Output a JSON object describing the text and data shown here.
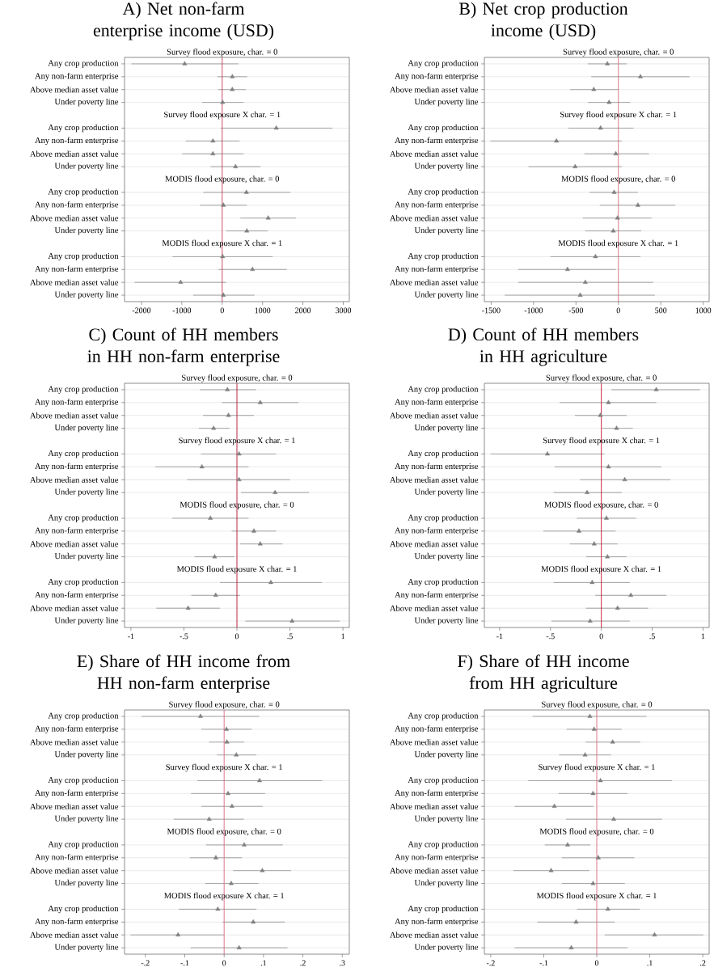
{
  "chart_data": [
    {
      "type": "scatter",
      "orientation": "horizontal",
      "title": "A) Net non-farm enterprise income (USD)",
      "categories": [
        "Any crop production",
        "Any non-farm enterprise",
        "Above median asset value",
        "Under poverty line",
        "Any crop production",
        "Any non-farm enterprise",
        "Above median asset value",
        "Under poverty line",
        "Any crop production",
        "Any non-farm enterprise",
        "Above median asset value",
        "Under poverty line",
        "Any crop production",
        "Any non-farm enterprise",
        "Above median asset value",
        "Under poverty line"
      ],
      "annotations": [
        "Survey flood exposure, char. = 0",
        "Survey flood exposure X char. = 1",
        "MODIS flood exposure, char. = 0",
        "MODIS flood exposure X char. = 1"
      ],
      "color": "#808080",
      "marker": "triangle",
      "grid": "y",
      "values": [
        -930,
        250,
        250,
        10,
        1340,
        -230,
        -230,
        330,
        600,
        30,
        1140,
        610,
        10,
        750,
        -1030,
        30
      ],
      "errors": [
        [
          -2250,
          400
        ],
        [
          -120,
          620
        ],
        [
          -100,
          590
        ],
        [
          -500,
          530
        ],
        [
          -30,
          2730
        ],
        [
          -900,
          430
        ],
        [
          -990,
          530
        ],
        [
          -290,
          950
        ],
        [
          -470,
          1690
        ],
        [
          -550,
          610
        ],
        [
          450,
          1830
        ],
        [
          100,
          1130
        ],
        [
          -1230,
          1250
        ],
        [
          -90,
          1600
        ],
        [
          -2170,
          100
        ],
        [
          -720,
          800
        ]
      ],
      "xlim": [
        -2420,
        3150
      ],
      "xticks": [
        -2000,
        -1000,
        0,
        1000,
        2000,
        3000
      ],
      "ref_lines": [
        {
          "axis": "x",
          "value": 0,
          "color": "#c8385a"
        }
      ]
    },
    {
      "type": "scatter",
      "orientation": "horizontal",
      "title": "B) Net crop production income (USD)",
      "categories": [
        "Any crop production",
        "Any non-farm enterprise",
        "Above median asset value",
        "Under poverty line",
        "Any crop production",
        "Any non-farm enterprise",
        "Above median asset value",
        "Under poverty line",
        "Any crop production",
        "Any non-farm enterprise",
        "Above median asset value",
        "Under poverty line",
        "Any crop production",
        "Any non-farm enterprise",
        "Above median asset value",
        "Under poverty line"
      ],
      "annotations": [
        "Survey flood exposure, char. = 0",
        "Survey flood exposure X char. = 1",
        "MODIS flood exposure, char. = 0",
        "MODIS flood exposure X char. = 1"
      ],
      "color": "#808080",
      "marker": "triangle",
      "grid": "y",
      "values": [
        -130,
        260,
        -290,
        -110,
        -210,
        -730,
        -30,
        -510,
        -50,
        230,
        -10,
        -60,
        -270,
        -600,
        -390,
        -450
      ],
      "errors": [
        [
          -360,
          100
        ],
        [
          -320,
          840
        ],
        [
          -570,
          0
        ],
        [
          -360,
          140
        ],
        [
          -590,
          180
        ],
        [
          -1510,
          40
        ],
        [
          -400,
          360
        ],
        [
          -1060,
          40
        ],
        [
          -340,
          230
        ],
        [
          -220,
          670
        ],
        [
          -420,
          390
        ],
        [
          -390,
          270
        ],
        [
          -800,
          260
        ],
        [
          -1180,
          -30
        ],
        [
          -1180,
          410
        ],
        [
          -1340,
          430
        ]
      ],
      "xlim": [
        -1580,
        1070
      ],
      "xticks": [
        -1500,
        -1000,
        -500,
        0,
        500,
        1000
      ],
      "ref_lines": [
        {
          "axis": "x",
          "value": 0,
          "color": "#d96680"
        }
      ]
    },
    {
      "type": "scatter",
      "orientation": "horizontal",
      "title": "C) Count of HH members in HH non-farm enterprise",
      "categories": [
        "Any crop production",
        "Any non-farm enterprise",
        "Above median asset value",
        "Under poverty line",
        "Any crop production",
        "Any non-farm enterprise",
        "Above median asset value",
        "Under poverty line",
        "Any crop production",
        "Any non-farm enterprise",
        "Above median asset value",
        "Under poverty line",
        "Any crop production",
        "Any non-farm enterprise",
        "Above median asset value",
        "Under poverty line"
      ],
      "annotations": [
        "Survey flood exposure, char. = 0",
        "Survey flood exposure X char. = 1",
        "MODIS flood exposure, char. = 0",
        "MODIS flood exposure X char. = 1"
      ],
      "color": "#808080",
      "marker": "triangle",
      "grid": "y",
      "values": [
        -0.09,
        0.22,
        -0.08,
        -0.22,
        0.02,
        -0.33,
        0.02,
        0.36,
        -0.25,
        0.16,
        0.22,
        -0.21,
        0.32,
        -0.2,
        -0.46,
        0.52
      ],
      "errors": [
        [
          -0.35,
          0.18
        ],
        [
          -0.14,
          0.58
        ],
        [
          -0.32,
          0.16
        ],
        [
          -0.36,
          -0.07
        ],
        [
          -0.34,
          0.37
        ],
        [
          -0.77,
          0.11
        ],
        [
          -0.47,
          0.5
        ],
        [
          0.04,
          0.68
        ],
        [
          -0.61,
          0.11
        ],
        [
          -0.05,
          0.37
        ],
        [
          0.03,
          0.43
        ],
        [
          -0.4,
          -0.02
        ],
        [
          -0.16,
          0.8
        ],
        [
          -0.43,
          0.03
        ],
        [
          -0.76,
          -0.16
        ],
        [
          0.08,
          0.97
        ]
      ],
      "xlim": [
        -1.06,
        1.06
      ],
      "xticks": [
        -1,
        {
          "value": -0.5,
          "label": "-.5"
        },
        0,
        {
          "value": 0.5,
          "label": ".5"
        },
        1
      ],
      "ref_lines": [
        {
          "axis": "x",
          "value": 0,
          "color": "#b01030"
        }
      ]
    },
    {
      "type": "scatter",
      "orientation": "horizontal",
      "title": "D) Count of HH members in HH agriculture",
      "categories": [
        "Any crop production",
        "Any non-farm enterprise",
        "Above median asset value",
        "Under poverty line",
        "Any crop production",
        "Any non-farm enterprise",
        "Above median asset value",
        "Under poverty line",
        "Any crop production",
        "Any non-farm enterprise",
        "Above median asset value",
        "Under poverty line",
        "Any crop production",
        "Any non-farm enterprise",
        "Above median asset value",
        "Under poverty line"
      ],
      "annotations": [
        "Survey flood exposure, char. = 0",
        "Survey flood exposure X char. = 1",
        "MODIS flood exposure, char. = 0",
        "MODIS flood exposure X char. = 1"
      ],
      "color": "#808080",
      "marker": "triangle",
      "grid": "y",
      "values": [
        0.54,
        0.07,
        -0.01,
        0.15,
        -0.53,
        0.07,
        0.23,
        -0.14,
        0.05,
        -0.22,
        -0.07,
        0.06,
        -0.09,
        0.29,
        0.16,
        -0.11
      ],
      "errors": [
        [
          0.1,
          0.97
        ],
        [
          -0.41,
          0.54
        ],
        [
          -0.26,
          0.25
        ],
        [
          0.01,
          0.31
        ],
        [
          -1.09,
          0.03
        ],
        [
          -0.46,
          0.59
        ],
        [
          -0.21,
          0.68
        ],
        [
          -0.47,
          0.2
        ],
        [
          -0.24,
          0.34
        ],
        [
          -0.57,
          0.14
        ],
        [
          -0.31,
          0.16
        ],
        [
          -0.15,
          0.25
        ],
        [
          -0.47,
          0.28
        ],
        [
          -0.06,
          0.64
        ],
        [
          -0.15,
          0.46
        ],
        [
          -0.49,
          0.28
        ]
      ],
      "xlim": [
        -1.15,
        1.06
      ],
      "xticks": [
        -1,
        {
          "value": -0.5,
          "label": "-.5"
        },
        0,
        {
          "value": 0.5,
          "label": ".5"
        },
        1
      ],
      "ref_lines": [
        {
          "axis": "x",
          "value": 0,
          "color": "#c8102e"
        }
      ]
    },
    {
      "type": "scatter",
      "orientation": "horizontal",
      "title": "E) Share of HH income from HH non-farm enterprise",
      "categories": [
        "Any crop production",
        "Any non-farm enterprise",
        "Above median asset value",
        "Under poverty line",
        "Any crop production",
        "Any non-farm enterprise",
        "Above median asset value",
        "Under poverty line",
        "Any crop production",
        "Any non-farm enterprise",
        "Above median asset value",
        "Under poverty line",
        "Any crop production",
        "Any non-farm enterprise",
        "Above median asset value",
        "Under poverty line"
      ],
      "annotations": [
        "Survey flood exposure, char. = 0",
        "Survey flood exposure X char. = 1",
        "MODIS flood exposure, char. = 0",
        "MODIS flood exposure X char. = 1"
      ],
      "color": "#808080",
      "marker": "triangle",
      "grid": "y",
      "values": [
        -0.06,
        0.006,
        0.007,
        0.031,
        0.09,
        0.01,
        0.02,
        -0.038,
        0.051,
        -0.021,
        0.097,
        0.018,
        -0.016,
        0.074,
        -0.117,
        0.038
      ],
      "errors": [
        [
          -0.21,
          0.089
        ],
        [
          -0.058,
          0.07
        ],
        [
          -0.038,
          0.051
        ],
        [
          -0.018,
          0.082
        ],
        [
          -0.068,
          0.249
        ],
        [
          -0.084,
          0.104
        ],
        [
          -0.058,
          0.098
        ],
        [
          -0.128,
          0.05
        ],
        [
          -0.046,
          0.149
        ],
        [
          -0.087,
          0.045
        ],
        [
          0.023,
          0.17
        ],
        [
          -0.048,
          0.087
        ],
        [
          -0.115,
          0.082
        ],
        [
          -0.004,
          0.154
        ],
        [
          -0.238,
          0
        ],
        [
          -0.085,
          0.161
        ]
      ],
      "xlim": [
        -0.253,
        0.318
      ],
      "xticks": [
        {
          "value": -0.2,
          "label": "-.2"
        },
        {
          "value": -0.1,
          "label": "-.1"
        },
        0,
        {
          "value": 0.1,
          "label": ".1"
        },
        {
          "value": 0.2,
          "label": ".2"
        },
        {
          "value": 0.3,
          "label": ".3"
        }
      ],
      "ref_lines": [
        {
          "axis": "x",
          "value": 0,
          "color": "#d96680"
        }
      ]
    },
    {
      "type": "scatter",
      "orientation": "horizontal",
      "title": "F) Share of HH income from HH agriculture",
      "categories": [
        "Any crop production",
        "Any non-farm enterprise",
        "Above median asset value",
        "Under poverty line",
        "Any crop production",
        "Any non-farm enterprise",
        "Above median asset value",
        "Under poverty line",
        "Any crop production",
        "Any non-farm enterprise",
        "Above median asset value",
        "Under poverty line",
        "Any crop production",
        "Any non-farm enterprise",
        "Above median asset value",
        "Under poverty line"
      ],
      "annotations": [
        "Survey flood exposure, char. = 0",
        "Survey flood exposure X char. = 1",
        "MODIS flood exposure, char. = 0",
        "MODIS flood exposure X char. = 1"
      ],
      "color": "#808080",
      "marker": "triangle",
      "grid": "y",
      "values": [
        -0.013,
        -0.005,
        0.03,
        -0.022,
        0.007,
        -0.007,
        -0.08,
        0.032,
        -0.055,
        0.003,
        -0.086,
        -0.007,
        0.021,
        -0.039,
        0.109,
        -0.048
      ],
      "errors": [
        [
          -0.121,
          0.094
        ],
        [
          -0.057,
          0.047
        ],
        [
          -0.021,
          0.082
        ],
        [
          -0.071,
          0.027
        ],
        [
          -0.129,
          0.142
        ],
        [
          -0.072,
          0.058
        ],
        [
          -0.155,
          -0.006
        ],
        [
          -0.058,
          0.123
        ],
        [
          -0.098,
          -0.012
        ],
        [
          -0.066,
          0.071
        ],
        [
          -0.157,
          -0.014
        ],
        [
          -0.066,
          0.053
        ],
        [
          -0.037,
          0.081
        ],
        [
          -0.112,
          0.034
        ],
        [
          0.015,
          0.201
        ],
        [
          -0.155,
          0.058
        ]
      ],
      "xlim": [
        -0.212,
        0.212
      ],
      "xticks": [
        {
          "value": -0.2,
          "label": "-.2"
        },
        {
          "value": -0.1,
          "label": "-.1"
        },
        0,
        {
          "value": 0.1,
          "label": ".1"
        },
        {
          "value": 0.2,
          "label": ".2"
        }
      ],
      "ref_lines": [
        {
          "axis": "x",
          "value": 0,
          "color": "#d96680"
        }
      ]
    }
  ]
}
